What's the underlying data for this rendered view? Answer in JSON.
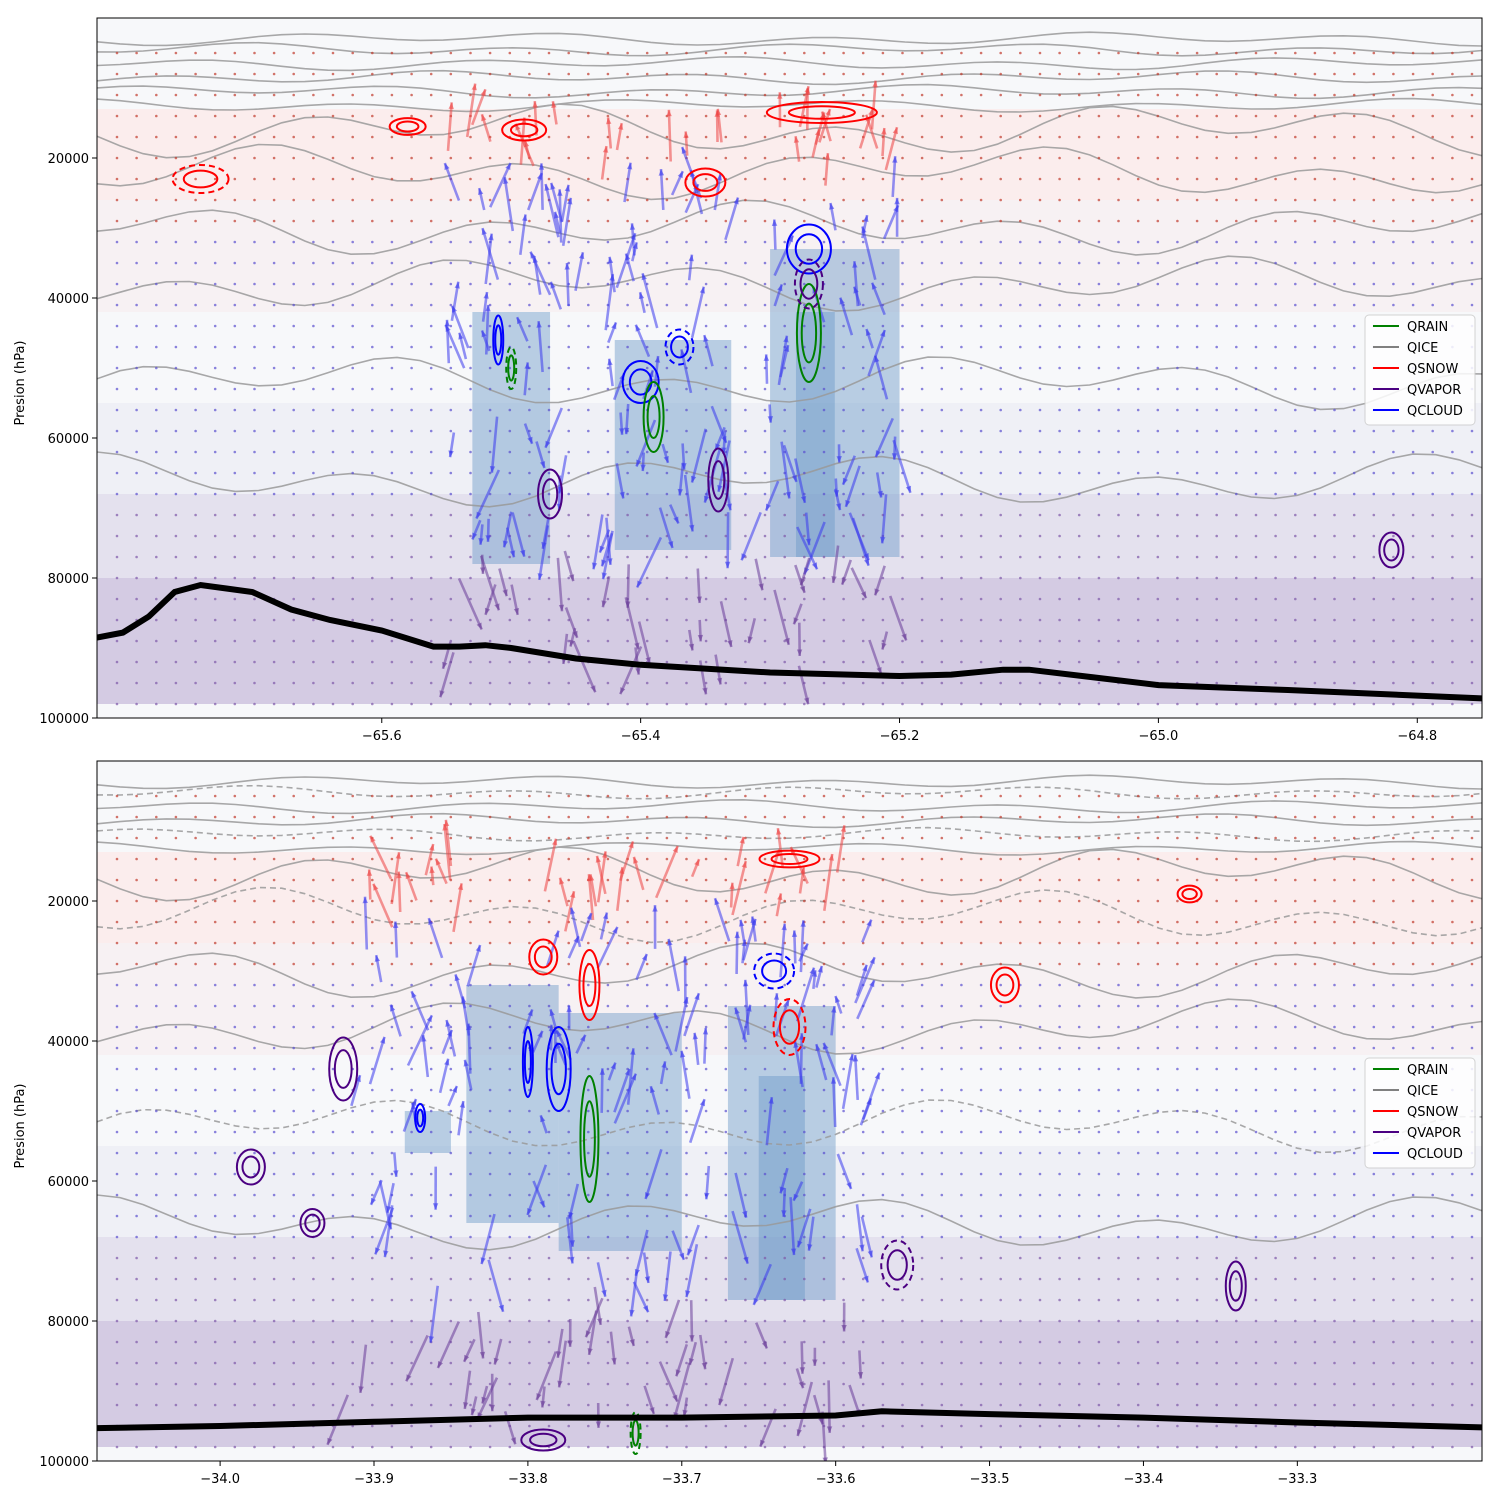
{
  "chart_data": [
    {
      "type": "contour",
      "ylabel": "Presion (hPa)",
      "xlabel": "",
      "title": "",
      "xlim": [
        -65.82,
        -64.75
      ],
      "ylim": [
        100000,
        0
      ],
      "y_inverted": true,
      "xticks": [
        -65.6,
        -65.4,
        -65.2,
        -65.0,
        -64.8
      ],
      "xtick_labels": [
        "−65.6",
        "−65.4",
        "−65.2",
        "−65.0",
        "−64.8"
      ],
      "yticks": [
        20000,
        40000,
        60000,
        80000,
        100000
      ],
      "ytick_labels": [
        "20000",
        "40000",
        "60000",
        "80000",
        "100000"
      ],
      "legend": {
        "placement": "center-right",
        "entries": [
          {
            "label": "QRAIN",
            "color": "#008000"
          },
          {
            "label": "QICE",
            "color": "#808080"
          },
          {
            "label": "QSNOW",
            "color": "#ff0000"
          },
          {
            "label": "QVAPOR",
            "color": "#4b0082"
          },
          {
            "label": "QCLOUD",
            "color": "#0000ff"
          }
        ]
      },
      "surface_pressure": {
        "x": [
          -65.82,
          -65.8,
          -65.78,
          -65.76,
          -65.74,
          -65.72,
          -65.7,
          -65.67,
          -65.64,
          -65.6,
          -65.56,
          -65.54,
          -65.52,
          -65.5,
          -65.45,
          -65.4,
          -65.3,
          -65.2,
          -65.16,
          -65.12,
          -65.1,
          -65.05,
          -65.0,
          -64.9,
          -64.8,
          -64.75
        ],
        "p": [
          88500,
          87800,
          85500,
          82000,
          81000,
          81500,
          82000,
          84500,
          86000,
          87500,
          89800,
          89800,
          89600,
          90000,
          91500,
          92400,
          93500,
          94000,
          93800,
          93100,
          93100,
          94200,
          95300,
          96000,
          96800,
          97200
        ]
      }
    },
    {
      "type": "contour",
      "ylabel": "Presion (hPa)",
      "xlabel": "",
      "title": "",
      "xlim": [
        -34.08,
        -33.18
      ],
      "ylim": [
        100000,
        0
      ],
      "y_inverted": true,
      "xticks": [
        -34.0,
        -33.9,
        -33.8,
        -33.7,
        -33.6,
        -33.5,
        -33.4,
        -33.3
      ],
      "xtick_labels": [
        "−34.0",
        "−33.9",
        "−33.8",
        "−33.7",
        "−33.6",
        "−33.5",
        "−33.4",
        "−33.3"
      ],
      "yticks": [
        20000,
        40000,
        60000,
        80000,
        100000
      ],
      "ytick_labels": [
        "20000",
        "40000",
        "60000",
        "80000",
        "100000"
      ],
      "legend": {
        "placement": "center-right",
        "entries": [
          {
            "label": "QRAIN",
            "color": "#008000"
          },
          {
            "label": "QICE",
            "color": "#808080"
          },
          {
            "label": "QSNOW",
            "color": "#ff0000"
          },
          {
            "label": "QVAPOR",
            "color": "#4b0082"
          },
          {
            "label": "QCLOUD",
            "color": "#0000ff"
          }
        ]
      },
      "surface_pressure": {
        "x": [
          -34.08,
          -34.0,
          -33.9,
          -33.8,
          -33.7,
          -33.6,
          -33.57,
          -33.5,
          -33.4,
          -33.3,
          -33.18
        ],
        "p": [
          95300,
          95000,
          94400,
          93800,
          93800,
          93500,
          92900,
          93300,
          93800,
          94500,
          95200
        ]
      }
    }
  ]
}
